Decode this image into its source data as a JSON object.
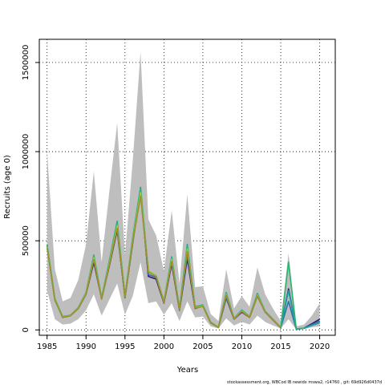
{
  "chart_data": {
    "type": "line",
    "xlabel": "Years",
    "ylabel": "Recruits (age 0)",
    "xlim": [
      1984,
      2022
    ],
    "ylim": [
      -30000,
      1630000
    ],
    "x_ticks": [
      1985,
      1990,
      1995,
      2000,
      2005,
      2010,
      2015,
      2020
    ],
    "y_ticks": [
      0,
      500000,
      1000000,
      1500000
    ],
    "grid": "dotted",
    "footer": "stockassessment.org,  WBCod  IB  newidx  mswa2,  r14760 ,  git:  69d926d0437d",
    "colors": {
      "band": "#bebebe",
      "series": [
        "#3b0f6f",
        "#2e6fa7",
        "#1aa2a0",
        "#2cb56e",
        "#a8c93a",
        "#9c8f2e"
      ]
    },
    "years": [
      1985,
      1986,
      1987,
      1988,
      1989,
      1990,
      1991,
      1992,
      1993,
      1994,
      1995,
      1996,
      1997,
      1998,
      1999,
      2000,
      2001,
      2002,
      2003,
      2004,
      2005,
      2006,
      2007,
      2008,
      2009,
      2010,
      2011,
      2012,
      2013,
      2014,
      2015,
      2016,
      2017,
      2018,
      2019,
      2020
    ],
    "band_upper": [
      1000000,
      340000,
      160000,
      180000,
      280000,
      480000,
      890000,
      380000,
      780000,
      1160000,
      420000,
      950000,
      1560000,
      620000,
      530000,
      330000,
      670000,
      260000,
      760000,
      240000,
      245000,
      90000,
      50000,
      340000,
      120000,
      190000,
      130000,
      350000,
      200000,
      120000,
      50000,
      430000,
      20000,
      30000,
      80000,
      150000
    ],
    "band_lower": [
      220000,
      60000,
      30000,
      35000,
      60000,
      110000,
      200000,
      80000,
      170000,
      260000,
      85000,
      190000,
      380000,
      150000,
      160000,
      85000,
      150000,
      50000,
      160000,
      70000,
      75000,
      20000,
      8000,
      65000,
      25000,
      45000,
      30000,
      80000,
      45000,
      25000,
      8000,
      60000,
      2000,
      5000,
      15000,
      20000
    ],
    "series": [
      {
        "values": [
          470000,
          170000,
          70000,
          80000,
          120000,
          200000,
          380000,
          175000,
          360000,
          560000,
          180000,
          490000,
          780000,
          300000,
          285000,
          150000,
          370000,
          110000,
          400000,
          120000,
          135000,
          40000,
          14000,
          180000,
          60000,
          100000,
          70000,
          190000,
          100000,
          55000,
          12000,
          230000,
          3000,
          10000,
          35000,
          60000
        ]
      },
      {
        "values": [
          470000,
          170000,
          72000,
          80000,
          122000,
          205000,
          400000,
          175000,
          370000,
          575000,
          185000,
          500000,
          790000,
          310000,
          295000,
          155000,
          380000,
          115000,
          420000,
          125000,
          135000,
          42000,
          14000,
          185000,
          62000,
          105000,
          72000,
          195000,
          102000,
          57000,
          13000,
          160000,
          3000,
          10000,
          30000,
          50000
        ]
      },
      {
        "values": [
          480000,
          175000,
          75000,
          82000,
          125000,
          210000,
          420000,
          180000,
          390000,
          610000,
          190000,
          520000,
          800000,
          330000,
          305000,
          160000,
          410000,
          120000,
          480000,
          130000,
          140000,
          44000,
          15000,
          210000,
          65000,
          112000,
          75000,
          205000,
          105000,
          60000,
          14000,
          220000,
          5000,
          10000,
          25000,
          40000
        ]
      },
      {
        "values": [
          475000,
          172000,
          74000,
          81000,
          124000,
          208000,
          415000,
          178000,
          385000,
          600000,
          188000,
          515000,
          790000,
          330000,
          305000,
          158000,
          405000,
          118000,
          470000,
          128000,
          138000,
          43000,
          15000,
          205000,
          64000,
          110000,
          74000,
          200000,
          104000,
          59000,
          14000,
          380000,
          5000,
          10000,
          null,
          null
        ]
      },
      {
        "values": [
          465000,
          168000,
          72000,
          80000,
          122000,
          205000,
          405000,
          175000,
          375000,
          585000,
          185000,
          505000,
          770000,
          330000,
          305000,
          155000,
          395000,
          115000,
          455000,
          125000,
          135000,
          42000,
          14000,
          200000,
          62000,
          107000,
          72000,
          195000,
          102000,
          57000,
          13000,
          null,
          null,
          null,
          null,
          null
        ]
      },
      {
        "values": [
          460000,
          165000,
          70000,
          79000,
          120000,
          200000,
          395000,
          172000,
          365000,
          570000,
          182000,
          495000,
          750000,
          325000,
          300000,
          152000,
          385000,
          112000,
          440000,
          122000,
          132000,
          41000,
          13000,
          195000,
          60000,
          104000,
          70000,
          190000,
          100000,
          55000,
          12000,
          null,
          null,
          null,
          null,
          null
        ]
      }
    ]
  }
}
